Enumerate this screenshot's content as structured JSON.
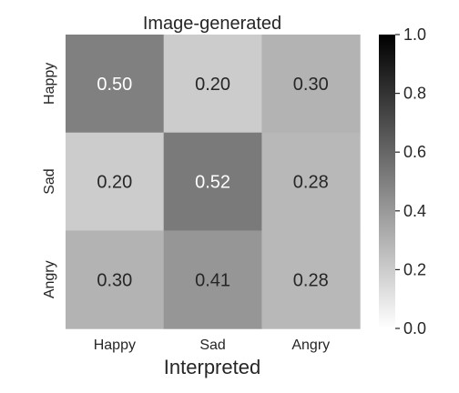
{
  "chart_data": {
    "type": "heatmap",
    "title": "Image-generated",
    "xlabel": "Interpreted",
    "ylabel": "",
    "x_categories": [
      "Happy",
      "Sad",
      "Angry"
    ],
    "y_categories": [
      "Happy",
      "Sad",
      "Angry"
    ],
    "values": [
      [
        0.5,
        0.2,
        0.3
      ],
      [
        0.2,
        0.52,
        0.28
      ],
      [
        0.3,
        0.41,
        0.28
      ]
    ],
    "cell_labels": [
      [
        "0.50",
        "0.20",
        "0.30"
      ],
      [
        "0.20",
        "0.52",
        "0.28"
      ],
      [
        "0.30",
        "0.41",
        "0.28"
      ]
    ],
    "colorbar": {
      "range": [
        0,
        1
      ],
      "ticks": [
        0.0,
        0.2,
        0.4,
        0.6,
        0.8,
        1.0
      ],
      "tick_labels": [
        "0.0",
        "0.2",
        "0.4",
        "0.6",
        "0.8",
        "1.0"
      ]
    },
    "colormap": {
      "low": "#ffffff",
      "high": "#000000"
    },
    "grid": false
  }
}
